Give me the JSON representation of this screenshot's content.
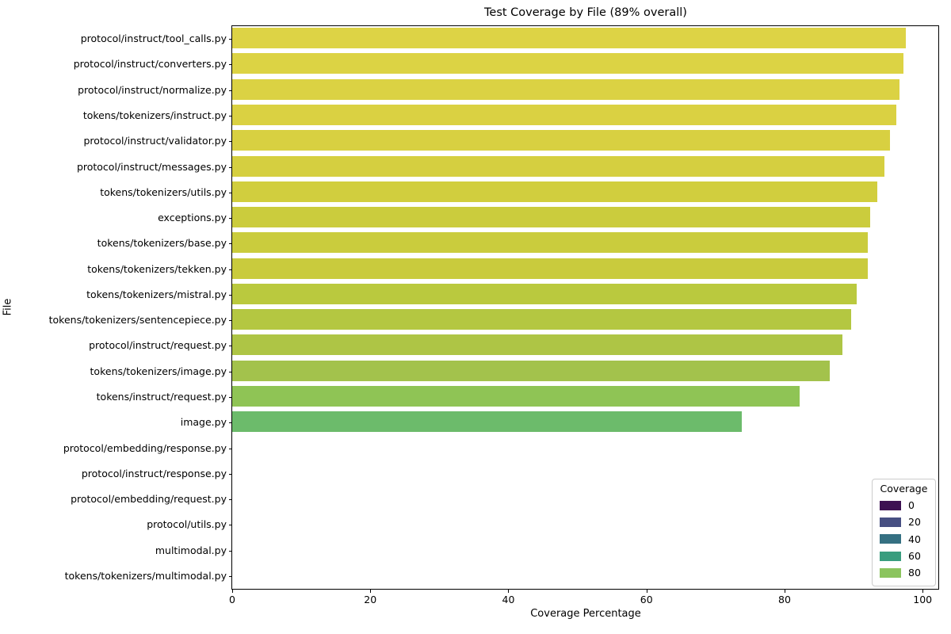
{
  "chart_data": {
    "type": "bar",
    "orientation": "horizontal",
    "title": "Test Coverage by File (89% overall)",
    "xlabel": "Coverage Percentage",
    "ylabel": "File",
    "xlim": [
      0,
      100
    ],
    "x_ticks": [
      "0",
      "20",
      "40",
      "60",
      "80",
      "100"
    ],
    "grid": false,
    "categories": [
      "protocol/instruct/tool_calls.py",
      "protocol/instruct/converters.py",
      "protocol/instruct/normalize.py",
      "tokens/tokenizers/instruct.py",
      "protocol/instruct/validator.py",
      "protocol/instruct/messages.py",
      "tokens/tokenizers/utils.py",
      "exceptions.py",
      "tokens/tokenizers/base.py",
      "tokens/tokenizers/tekken.py",
      "tokens/tokenizers/mistral.py",
      "tokens/tokenizers/sentencepiece.py",
      "protocol/instruct/request.py",
      "tokens/tokenizers/image.py",
      "tokens/instruct/request.py",
      "image.py",
      "protocol/embedding/response.py",
      "protocol/instruct/response.py",
      "protocol/embedding/request.py",
      "protocol/utils.py",
      "multimodal.py",
      "tokens/tokenizers/multimodal.py"
    ],
    "values": [
      97.6,
      97.2,
      96.6,
      96.2,
      95.3,
      94.5,
      93.4,
      92.4,
      92.1,
      92.0,
      90.4,
      89.6,
      88.4,
      86.6,
      82.2,
      73.8,
      0,
      0,
      0,
      0,
      0,
      0
    ],
    "bar_colors": [
      "#ddd345",
      "#dcd344",
      "#dbd243",
      "#dad142",
      "#d8d041",
      "#d5cf40",
      "#d1ce3e",
      "#cbcc3d",
      "#cacc3d",
      "#c9cb3d",
      "#bac93e",
      "#b4c741",
      "#aec545",
      "#a3c24c",
      "#8fc455",
      "#6cbb6b",
      "#3d1152",
      "#3d1152",
      "#3d1152",
      "#3d1152",
      "#3d1152",
      "#3d1152"
    ],
    "legend": {
      "title": "Coverage",
      "position": "lower right",
      "entries": [
        {
          "label": "0",
          "color": "#3d1152"
        },
        {
          "label": "20",
          "color": "#474f82"
        },
        {
          "label": "40",
          "color": "#357082"
        },
        {
          "label": "60",
          "color": "#399d7e"
        },
        {
          "label": "80",
          "color": "#8bc45e"
        }
      ]
    }
  }
}
